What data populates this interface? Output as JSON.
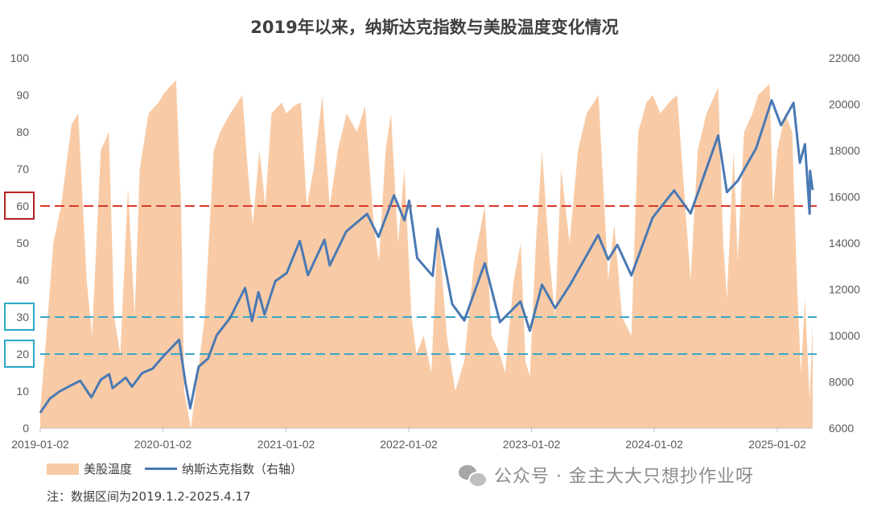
{
  "title": "2019年以来，纳斯达克指数与美股温度变化情况",
  "note": "注：数据区间为2019.1.2-2025.4.17",
  "watermark": "公众号 · 金主大大只想抄作业呀",
  "chart_data": {
    "type": "area+line",
    "x_ticks": [
      "2019-01-02",
      "2020-01-02",
      "2021-01-02",
      "2022-01-02",
      "2023-01-02",
      "2024-01-02",
      "2025-01-02"
    ],
    "x_range": [
      "2019-01-02",
      "2025-04-17"
    ],
    "y_left": {
      "min": 0,
      "max": 100,
      "ticks": [
        0,
        10,
        20,
        30,
        40,
        50,
        60,
        70,
        80,
        90,
        100
      ]
    },
    "y_right": {
      "min": 6000,
      "max": 22000,
      "ticks": [
        6000,
        8000,
        10000,
        12000,
        14000,
        16000,
        18000,
        20000,
        22000
      ]
    },
    "legend": [
      "美股温度",
      "纳斯达克指数（右轴）"
    ],
    "reference_lines": [
      {
        "value": 60,
        "color": "#d9392b",
        "boxed_label": "60",
        "box_color": "#b22222"
      },
      {
        "value": 30,
        "color": "#3aa6c9",
        "boxed_label": "30",
        "box_color": "#2ba7c9"
      },
      {
        "value": 20,
        "color": "#3aa6c9",
        "boxed_label": "20",
        "box_color": "#2ba7c9"
      }
    ],
    "series": [
      {
        "name": "美股温度",
        "axis": "left",
        "color": "#f8cba6",
        "points": [
          [
            "2019-01-02",
            5
          ],
          [
            "2019-01-20",
            25
          ],
          [
            "2019-02-10",
            50
          ],
          [
            "2019-03-05",
            60
          ],
          [
            "2019-04-05",
            82
          ],
          [
            "2019-04-25",
            85
          ],
          [
            "2019-05-20",
            40
          ],
          [
            "2019-06-05",
            25
          ],
          [
            "2019-07-01",
            75
          ],
          [
            "2019-07-25",
            80
          ],
          [
            "2019-08-10",
            30
          ],
          [
            "2019-08-28",
            20
          ],
          [
            "2019-09-20",
            65
          ],
          [
            "2019-10-10",
            30
          ],
          [
            "2019-10-25",
            70
          ],
          [
            "2019-11-20",
            85
          ],
          [
            "2019-12-20",
            88
          ],
          [
            "2020-01-02",
            90
          ],
          [
            "2020-01-20",
            92
          ],
          [
            "2020-02-10",
            94
          ],
          [
            "2020-02-25",
            60
          ],
          [
            "2020-03-05",
            10
          ],
          [
            "2020-03-25",
            0
          ],
          [
            "2020-04-15",
            15
          ],
          [
            "2020-05-05",
            30
          ],
          [
            "2020-06-01",
            75
          ],
          [
            "2020-06-20",
            80
          ],
          [
            "2020-07-20",
            85
          ],
          [
            "2020-08-25",
            90
          ],
          [
            "2020-09-10",
            70
          ],
          [
            "2020-09-25",
            55
          ],
          [
            "2020-10-15",
            75
          ],
          [
            "2020-11-01",
            60
          ],
          [
            "2020-11-20",
            85
          ],
          [
            "2020-12-20",
            88
          ],
          [
            "2021-01-02",
            85
          ],
          [
            "2021-01-25",
            87
          ],
          [
            "2021-02-15",
            88
          ],
          [
            "2021-03-05",
            60
          ],
          [
            "2021-03-25",
            70
          ],
          [
            "2021-04-20",
            90
          ],
          [
            "2021-05-12",
            60
          ],
          [
            "2021-06-05",
            75
          ],
          [
            "2021-07-01",
            85
          ],
          [
            "2021-08-01",
            80
          ],
          [
            "2021-08-25",
            87
          ],
          [
            "2021-09-20",
            55
          ],
          [
            "2021-10-05",
            45
          ],
          [
            "2021-10-25",
            75
          ],
          [
            "2021-11-10",
            85
          ],
          [
            "2021-12-01",
            50
          ],
          [
            "2021-12-20",
            70
          ],
          [
            "2022-01-10",
            30
          ],
          [
            "2022-01-25",
            20
          ],
          [
            "2022-02-15",
            25
          ],
          [
            "2022-03-10",
            15
          ],
          [
            "2022-03-30",
            55
          ],
          [
            "2022-04-25",
            25
          ],
          [
            "2022-05-20",
            10
          ],
          [
            "2022-06-16",
            18
          ],
          [
            "2022-07-15",
            45
          ],
          [
            "2022-08-16",
            60
          ],
          [
            "2022-09-05",
            25
          ],
          [
            "2022-09-30",
            20
          ],
          [
            "2022-10-15",
            15
          ],
          [
            "2022-11-10",
            40
          ],
          [
            "2022-12-01",
            50
          ],
          [
            "2022-12-15",
            18
          ],
          [
            "2022-12-28",
            14
          ],
          [
            "2023-01-15",
            50
          ],
          [
            "2023-02-02",
            75
          ],
          [
            "2023-02-25",
            45
          ],
          [
            "2023-03-13",
            30
          ],
          [
            "2023-03-31",
            70
          ],
          [
            "2023-04-25",
            50
          ],
          [
            "2023-05-20",
            75
          ],
          [
            "2023-06-15",
            85
          ],
          [
            "2023-07-20",
            90
          ],
          [
            "2023-08-18",
            40
          ],
          [
            "2023-09-05",
            55
          ],
          [
            "2023-09-28",
            30
          ],
          [
            "2023-10-26",
            25
          ],
          [
            "2023-11-15",
            80
          ],
          [
            "2023-12-10",
            88
          ],
          [
            "2023-12-28",
            90
          ],
          [
            "2024-01-20",
            85
          ],
          [
            "2024-02-15",
            88
          ],
          [
            "2024-03-10",
            90
          ],
          [
            "2024-04-19",
            40
          ],
          [
            "2024-05-10",
            75
          ],
          [
            "2024-06-05",
            85
          ],
          [
            "2024-07-10",
            92
          ],
          [
            "2024-07-25",
            50
          ],
          [
            "2024-08-05",
            35
          ],
          [
            "2024-08-25",
            75
          ],
          [
            "2024-09-06",
            45
          ],
          [
            "2024-09-25",
            80
          ],
          [
            "2024-10-20",
            85
          ],
          [
            "2024-11-06",
            90
          ],
          [
            "2024-12-10",
            93
          ],
          [
            "2024-12-20",
            60
          ],
          [
            "2025-01-02",
            75
          ],
          [
            "2025-01-25",
            85
          ],
          [
            "2025-02-15",
            80
          ],
          [
            "2025-03-01",
            40
          ],
          [
            "2025-03-13",
            15
          ],
          [
            "2025-03-25",
            35
          ],
          [
            "2025-04-08",
            8
          ],
          [
            "2025-04-17",
            28
          ]
        ]
      },
      {
        "name": "纳斯达克指数（右轴）",
        "axis": "right",
        "color": "#4a79b3",
        "points": [
          [
            "2019-01-02",
            6665
          ],
          [
            "2019-01-31",
            7280
          ],
          [
            "2019-03-01",
            7590
          ],
          [
            "2019-04-01",
            7830
          ],
          [
            "2019-05-01",
            8050
          ],
          [
            "2019-06-03",
            7330
          ],
          [
            "2019-07-01",
            8090
          ],
          [
            "2019-07-26",
            8330
          ],
          [
            "2019-08-05",
            7730
          ],
          [
            "2019-09-13",
            8180
          ],
          [
            "2019-10-02",
            7790
          ],
          [
            "2019-11-01",
            8380
          ],
          [
            "2019-12-02",
            8570
          ],
          [
            "2020-01-02",
            9090
          ],
          [
            "2020-02-19",
            9820
          ],
          [
            "2020-03-09",
            7950
          ],
          [
            "2020-03-23",
            6860
          ],
          [
            "2020-04-17",
            8650
          ],
          [
            "2020-05-15",
            9010
          ],
          [
            "2020-06-10",
            10020
          ],
          [
            "2020-07-20",
            10770
          ],
          [
            "2020-09-02",
            12060
          ],
          [
            "2020-09-23",
            10630
          ],
          [
            "2020-10-12",
            11880
          ],
          [
            "2020-10-30",
            10910
          ],
          [
            "2020-12-01",
            12350
          ],
          [
            "2021-01-04",
            12700
          ],
          [
            "2021-02-12",
            14090
          ],
          [
            "2021-03-08",
            12610
          ],
          [
            "2021-04-26",
            14140
          ],
          [
            "2021-05-12",
            13030
          ],
          [
            "2021-06-30",
            14500
          ],
          [
            "2021-08-31",
            15260
          ],
          [
            "2021-10-04",
            14260
          ],
          [
            "2021-11-19",
            16060
          ],
          [
            "2021-12-20",
            14980
          ],
          [
            "2022-01-03",
            15830
          ],
          [
            "2022-01-27",
            13350
          ],
          [
            "2022-03-14",
            12580
          ],
          [
            "2022-03-29",
            14620
          ],
          [
            "2022-05-11",
            11360
          ],
          [
            "2022-06-16",
            10650
          ],
          [
            "2022-08-16",
            13130
          ],
          [
            "2022-09-30",
            10580
          ],
          [
            "2022-11-30",
            11470
          ],
          [
            "2022-12-28",
            10210
          ],
          [
            "2023-02-02",
            12200
          ],
          [
            "2023-03-13",
            11190
          ],
          [
            "2023-04-28",
            12230
          ],
          [
            "2023-07-19",
            14350
          ],
          [
            "2023-08-18",
            13290
          ],
          [
            "2023-09-14",
            13920
          ],
          [
            "2023-10-26",
            12600
          ],
          [
            "2023-12-28",
            15100
          ],
          [
            "2024-03-01",
            16270
          ],
          [
            "2024-04-19",
            15280
          ],
          [
            "2024-07-10",
            18650
          ],
          [
            "2024-08-05",
            16200
          ],
          [
            "2024-09-06",
            16690
          ],
          [
            "2024-10-31",
            18100
          ],
          [
            "2024-12-16",
            20170
          ],
          [
            "2025-01-13",
            19090
          ],
          [
            "2025-02-19",
            20060
          ],
          [
            "2025-03-10",
            17470
          ],
          [
            "2025-03-25",
            18270
          ],
          [
            "2025-04-08",
            15270
          ],
          [
            "2025-04-09",
            17120
          ],
          [
            "2025-04-17",
            16290
          ]
        ]
      }
    ]
  }
}
